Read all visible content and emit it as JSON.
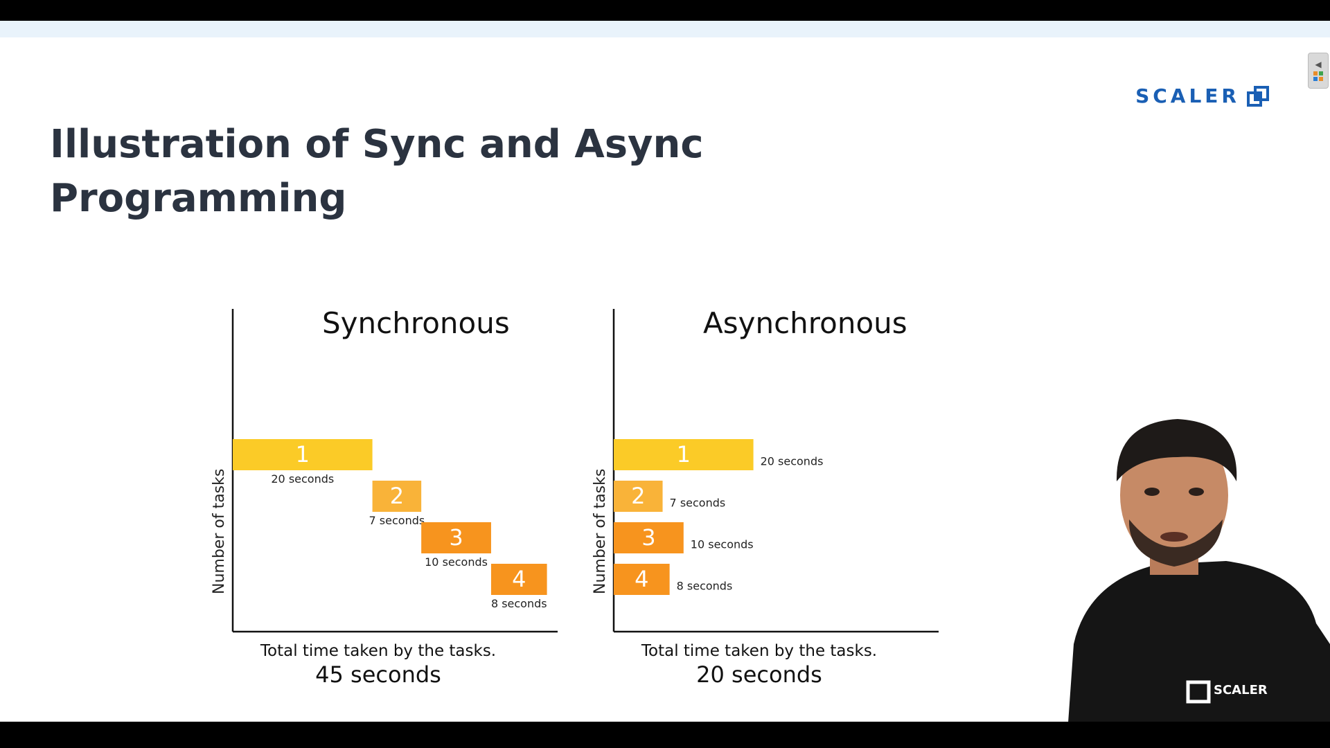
{
  "slide": {
    "title": "Illustration of Sync and Async Programming",
    "logo_text": "SCALER",
    "shirt_logo_text": "SCALER"
  },
  "colors": {
    "title": "#2b3340",
    "brand": "#1a5fb4",
    "task1": "#fbcb27",
    "task2": "#f9b339",
    "task3": "#f7941e",
    "task4": "#f7941e"
  },
  "chart_data": [
    {
      "type": "bar",
      "title": "Synchronous",
      "ylabel": "Number of tasks",
      "tasks": [
        {
          "label": "1",
          "duration": 20,
          "start": 0,
          "duration_label": "20 seconds"
        },
        {
          "label": "2",
          "duration": 7,
          "start": 20,
          "duration_label": "7 seconds"
        },
        {
          "label": "3",
          "duration": 10,
          "start": 27,
          "duration_label": "10 seconds"
        },
        {
          "label": "4",
          "duration": 8,
          "start": 37,
          "duration_label": "8 seconds"
        }
      ],
      "caption": "Total time taken by the tasks.",
      "total": "45 seconds"
    },
    {
      "type": "bar",
      "title": "Asynchronous",
      "ylabel": "Number of tasks",
      "tasks": [
        {
          "label": "1",
          "duration": 20,
          "start": 0,
          "duration_label": "20 seconds"
        },
        {
          "label": "2",
          "duration": 7,
          "start": 0,
          "duration_label": "7 seconds"
        },
        {
          "label": "3",
          "duration": 10,
          "start": 0,
          "duration_label": "10 seconds"
        },
        {
          "label": "4",
          "duration": 8,
          "start": 0,
          "duration_label": "8 seconds"
        }
      ],
      "caption": "Total time taken by the tasks.",
      "total": "20 seconds"
    }
  ]
}
